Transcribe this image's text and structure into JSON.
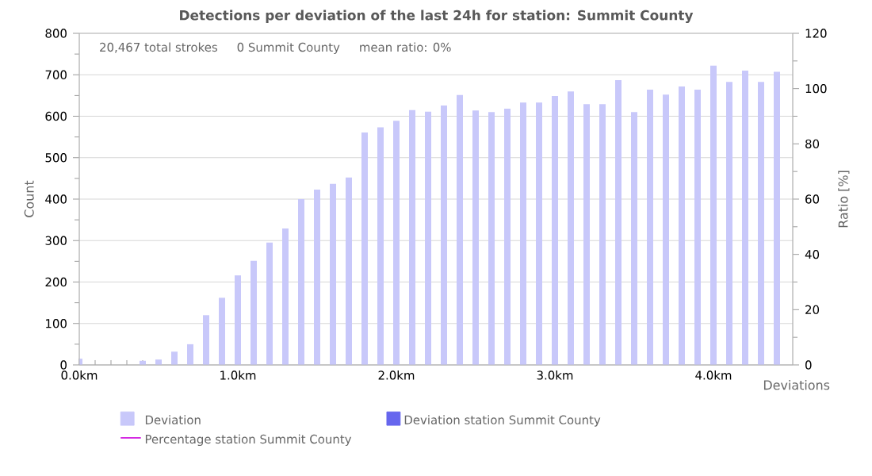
{
  "chart_data": {
    "type": "bar",
    "title": "Detections per deviation of the last 24h for station: Summit County",
    "xlabel": "Deviations",
    "ylabel": "Count",
    "y2label": "Ratio [%]",
    "annotations": [
      "20,467 total strokes",
      "0 Summit County",
      "mean ratio: 0%"
    ],
    "x": [
      0.0,
      0.1,
      0.2,
      0.3,
      0.4,
      0.5,
      0.6,
      0.7,
      0.8,
      0.9,
      1.0,
      1.1,
      1.2,
      1.3,
      1.4,
      1.5,
      1.6,
      1.7,
      1.8,
      1.9,
      2.0,
      2.1,
      2.2,
      2.3,
      2.4,
      2.5,
      2.6,
      2.7,
      2.8,
      2.9,
      3.0,
      3.1,
      3.2,
      3.3,
      3.4,
      3.5,
      3.6,
      3.7,
      3.8,
      3.9,
      4.0,
      4.1,
      4.2,
      4.3,
      4.4
    ],
    "series": [
      {
        "name": "Deviation",
        "color": "#c8c8fa",
        "values": [
          15,
          0,
          null,
          0,
          10,
          13,
          32,
          50,
          120,
          162,
          216,
          251,
          295,
          329,
          400,
          423,
          437,
          452,
          561,
          573,
          589,
          615,
          611,
          626,
          651,
          614,
          610,
          618,
          633,
          633,
          649,
          660,
          629,
          629,
          687,
          610,
          664,
          652,
          672,
          664,
          722,
          683,
          710,
          683,
          707
        ]
      },
      {
        "name": "Deviation station Summit County",
        "color": "#6666ee",
        "values": [
          null,
          null,
          null,
          null,
          null,
          null,
          null,
          null,
          null,
          null,
          null,
          null,
          null,
          null,
          null,
          null,
          null,
          null,
          null,
          null,
          null,
          null,
          null,
          null,
          null,
          null,
          null,
          null,
          null,
          null,
          null,
          null,
          null,
          null,
          null,
          null,
          null,
          null,
          null,
          null,
          null,
          null,
          null,
          null,
          null
        ]
      },
      {
        "name": "Percentage station Summit County",
        "type": "line",
        "color": "#cc00dd",
        "values": [
          null,
          null,
          null,
          null,
          null,
          null,
          null,
          null,
          null,
          null,
          null,
          null,
          null,
          null,
          null,
          null,
          null,
          null,
          null,
          null,
          null,
          null,
          null,
          null,
          null,
          null,
          null,
          null,
          null,
          null,
          null,
          null,
          null,
          null,
          null,
          null,
          null,
          null,
          null,
          null,
          null,
          null,
          null,
          null,
          null
        ]
      }
    ],
    "xlim": [
      0,
      4.5
    ],
    "xticks": [
      {
        "value": 0,
        "label": "0.0km"
      },
      {
        "value": 1,
        "label": "1.0km"
      },
      {
        "value": 2,
        "label": "2.0km"
      },
      {
        "value": 3,
        "label": "3.0km"
      },
      {
        "value": 4,
        "label": "4.0km"
      }
    ],
    "ylim": [
      0,
      800
    ],
    "yticks": [
      0,
      100,
      200,
      300,
      400,
      500,
      600,
      700,
      800
    ],
    "y2lim": [
      0,
      120
    ],
    "y2ticks": [
      0,
      20,
      40,
      60,
      80,
      100,
      120
    ],
    "grid": "y",
    "legend": "bottom"
  }
}
